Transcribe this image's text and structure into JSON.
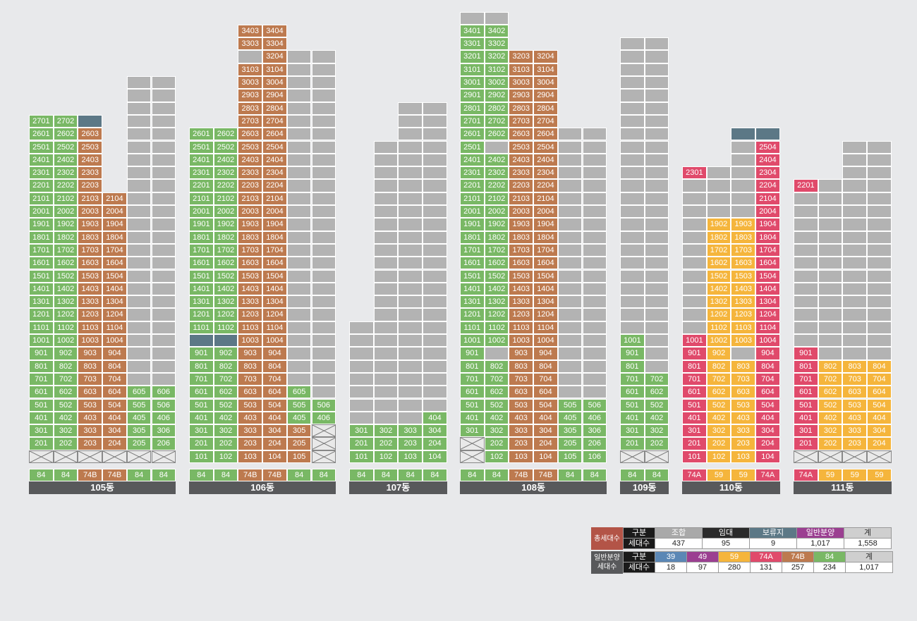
{
  "colors": {
    "green": "#79b865",
    "brown": "#bd7a4f",
    "gray": "#b3b3b3",
    "slate": "#5c7886",
    "red": "#e04a6b",
    "yellow": "#f5b53c",
    "label_bar": "#58595b",
    "purple": "#9b3f91",
    "blue": "#5b87b5"
  },
  "buildings": [
    {
      "name": "105동",
      "types": [
        {
          "t": "84",
          "c": "green"
        },
        {
          "t": "84",
          "c": "green"
        },
        {
          "t": "74B",
          "c": "brown"
        },
        {
          "t": "74B",
          "c": "brown"
        },
        {
          "t": "84",
          "c": "green"
        },
        {
          "t": "84",
          "c": "green"
        }
      ],
      "columns": [
        {
          "top": 27,
          "specs": [
            [
              27,
              27,
              "green",
              true
            ],
            [
              2,
              26,
              "green",
              true
            ],
            [
              1,
              1,
              "x",
              false
            ]
          ]
        },
        {
          "top": 27,
          "specs": [
            [
              27,
              27,
              "green",
              true
            ],
            [
              2,
              26,
              "green",
              true
            ],
            [
              1,
              1,
              "x",
              false
            ]
          ]
        },
        {
          "top": 27,
          "specs": [
            [
              27,
              27,
              "slate",
              false
            ],
            [
              2,
              26,
              "brown",
              true
            ],
            [
              1,
              1,
              "x",
              false
            ]
          ]
        },
        {
          "top": 21,
          "specs": [
            [
              2,
              21,
              "brown",
              true
            ],
            [
              1,
              1,
              "x",
              false
            ]
          ]
        },
        {
          "top": 30,
          "specs": [
            [
              7,
              30,
              "gray",
              false
            ],
            [
              2,
              6,
              "green",
              true
            ],
            [
              1,
              1,
              "x",
              false
            ]
          ]
        },
        {
          "top": 30,
          "specs": [
            [
              7,
              30,
              "gray",
              false
            ],
            [
              2,
              6,
              "green",
              true
            ],
            [
              1,
              1,
              "x",
              false
            ]
          ]
        }
      ]
    },
    {
      "name": "106동",
      "types": [
        {
          "t": "84",
          "c": "green"
        },
        {
          "t": "84",
          "c": "green"
        },
        {
          "t": "74B",
          "c": "brown"
        },
        {
          "t": "74B",
          "c": "brown"
        },
        {
          "t": "84",
          "c": "green"
        },
        {
          "t": "84",
          "c": "green"
        }
      ],
      "columns": [
        {
          "top": 26,
          "specs": [
            [
              11,
              26,
              "green",
              true
            ],
            [
              10,
              10,
              "slate",
              false
            ],
            [
              1,
              9,
              "green",
              true
            ]
          ]
        },
        {
          "top": 26,
          "specs": [
            [
              11,
              26,
              "green",
              true
            ],
            [
              10,
              10,
              "slate",
              false
            ],
            [
              1,
              9,
              "green",
              true
            ]
          ]
        },
        {
          "top": 34,
          "specs": [
            [
              33,
              34,
              "brown",
              true
            ],
            [
              32,
              32,
              "gray",
              false
            ],
            [
              1,
              31,
              "brown",
              true
            ]
          ]
        },
        {
          "top": 34,
          "specs": [
            [
              1,
              34,
              "brown",
              true
            ]
          ]
        },
        {
          "top": 32,
          "specs": [
            [
              7,
              32,
              "gray",
              false
            ],
            [
              6,
              6,
              "green",
              true
            ],
            [
              4,
              5,
              "green",
              true
            ],
            [
              2,
              3,
              "brown",
              true
            ],
            [
              1,
              1,
              "brown",
              true
            ]
          ]
        },
        {
          "top": 32,
          "specs": [
            [
              6,
              32,
              "gray",
              false
            ],
            [
              4,
              5,
              "green",
              true
            ],
            [
              1,
              3,
              "x",
              false
            ]
          ]
        }
      ]
    },
    {
      "name": "107동",
      "types": [
        {
          "t": "84",
          "c": "green"
        },
        {
          "t": "84",
          "c": "green"
        },
        {
          "t": "84",
          "c": "green"
        },
        {
          "t": "84",
          "c": "green"
        }
      ],
      "columns": [
        {
          "top": 11,
          "specs": [
            [
              4,
              11,
              "gray",
              false
            ],
            [
              1,
              3,
              "green",
              true
            ]
          ]
        },
        {
          "top": 25,
          "specs": [
            [
              4,
              25,
              "gray",
              false
            ],
            [
              1,
              3,
              "green",
              true
            ]
          ]
        },
        {
          "top": 28,
          "specs": [
            [
              4,
              28,
              "gray",
              false
            ],
            [
              1,
              3,
              "green",
              true
            ]
          ]
        },
        {
          "top": 28,
          "specs": [
            [
              5,
              28,
              "gray",
              false
            ],
            [
              1,
              4,
              "green",
              true
            ]
          ]
        }
      ]
    },
    {
      "name": "108동",
      "types": [
        {
          "t": "84",
          "c": "green"
        },
        {
          "t": "84",
          "c": "green"
        },
        {
          "t": "74B",
          "c": "brown"
        },
        {
          "t": "74B",
          "c": "brown"
        },
        {
          "t": "84",
          "c": "green"
        },
        {
          "t": "84",
          "c": "green"
        }
      ],
      "columns": [
        {
          "top": 35,
          "specs": [
            [
              35,
              35,
              "gray",
              false
            ],
            [
              27,
              34,
              "green",
              true
            ],
            [
              25,
              26,
              "green",
              true
            ],
            [
              4,
              25,
              "green",
              true
            ],
            [
              3,
              3,
              "green",
              true
            ],
            [
              2,
              2,
              "x",
              false
            ],
            [
              1,
              1,
              "x",
              false
            ]
          ]
        },
        {
          "top": 35,
          "specs": [
            [
              35,
              35,
              "gray",
              false
            ],
            [
              27,
              34,
              "green",
              true
            ],
            [
              26,
              26,
              "green",
              true
            ],
            [
              25,
              25,
              "gray",
              false
            ],
            [
              10,
              24,
              "green",
              true
            ],
            [
              9,
              9,
              "gray",
              false
            ],
            [
              2,
              8,
              "green",
              true
            ],
            [
              1,
              1,
              "green",
              true
            ]
          ]
        },
        {
          "top": 32,
          "specs": [
            [
              1,
              32,
              "brown",
              true
            ]
          ]
        },
        {
          "top": 32,
          "specs": [
            [
              1,
              32,
              "brown",
              true
            ]
          ]
        },
        {
          "top": 26,
          "specs": [
            [
              6,
              26,
              "gray",
              false
            ],
            [
              1,
              5,
              "green",
              true
            ]
          ]
        },
        {
          "top": 26,
          "specs": [
            [
              6,
              26,
              "gray",
              false
            ],
            [
              1,
              5,
              "green",
              true
            ]
          ]
        }
      ]
    },
    {
      "name": "109동",
      "types": [
        {
          "t": "84",
          "c": "green"
        },
        {
          "t": "84",
          "c": "green"
        }
      ],
      "columns": [
        {
          "top": 33,
          "specs": [
            [
              11,
              33,
              "gray",
              false
            ],
            [
              2,
              10,
              "green",
              true
            ],
            [
              1,
              1,
              "x",
              false
            ]
          ]
        },
        {
          "top": 33,
          "specs": [
            [
              8,
              33,
              "gray",
              false
            ],
            [
              2,
              7,
              "green",
              true
            ],
            [
              1,
              1,
              "x",
              false
            ]
          ]
        }
      ]
    },
    {
      "name": "110동",
      "types": [
        {
          "t": "74A",
          "c": "red"
        },
        {
          "t": "59",
          "c": "yellow"
        },
        {
          "t": "59",
          "c": "yellow"
        },
        {
          "t": "74A",
          "c": "red"
        }
      ],
      "columns": [
        {
          "top": 23,
          "specs": [
            [
              23,
              23,
              "red",
              true
            ],
            [
              11,
              22,
              "gray",
              false
            ],
            [
              1,
              10,
              "red",
              true
            ]
          ]
        },
        {
          "top": 23,
          "specs": [
            [
              20,
              23,
              "gray",
              false
            ],
            [
              1,
              19,
              "yellow",
              true
            ]
          ]
        },
        {
          "top": 26,
          "specs": [
            [
              26,
              26,
              "slate",
              false
            ],
            [
              20,
              25,
              "gray",
              false
            ],
            [
              10,
              19,
              "yellow",
              true
            ],
            [
              9,
              9,
              "gray",
              false
            ],
            [
              1,
              8,
              "yellow",
              true
            ]
          ]
        },
        {
          "top": 26,
          "specs": [
            [
              26,
              26,
              "slate",
              false
            ],
            [
              1,
              25,
              "red",
              true
            ]
          ]
        }
      ]
    },
    {
      "name": "111동",
      "types": [
        {
          "t": "74A",
          "c": "red"
        },
        {
          "t": "59",
          "c": "yellow"
        },
        {
          "t": "59",
          "c": "yellow"
        },
        {
          "t": "59",
          "c": "yellow"
        }
      ],
      "columns": [
        {
          "top": 22,
          "specs": [
            [
              22,
              22,
              "red",
              true
            ],
            [
              10,
              21,
              "gray",
              false
            ],
            [
              2,
              9,
              "red",
              true
            ],
            [
              1,
              1,
              "x",
              false
            ]
          ]
        },
        {
          "top": 22,
          "specs": [
            [
              9,
              22,
              "gray",
              false
            ],
            [
              2,
              8,
              "yellow",
              true
            ],
            [
              1,
              1,
              "x",
              false
            ]
          ]
        },
        {
          "top": 25,
          "specs": [
            [
              9,
              25,
              "gray",
              false
            ],
            [
              2,
              8,
              "yellow",
              true
            ],
            [
              1,
              1,
              "x",
              false
            ]
          ]
        },
        {
          "top": 25,
          "specs": [
            [
              9,
              25,
              "gray",
              false
            ],
            [
              2,
              8,
              "yellow",
              true
            ],
            [
              1,
              1,
              "x",
              false
            ]
          ]
        }
      ]
    }
  ],
  "legend_total": {
    "side_label": "총세대수",
    "header": [
      "구분",
      "조합",
      "임대",
      "보류지",
      "일반분양",
      "계"
    ],
    "header_colors": [
      "#1a1a1a",
      "#a9a9a9",
      "#2a2a2a",
      "#5c7886",
      "#9b3f91",
      "#cfcfcf"
    ],
    "row_label": "세대수",
    "values": [
      "437",
      "95",
      "9",
      "1,017",
      "1,558"
    ]
  },
  "legend_general": {
    "side_label": "일반분양\n세대수",
    "header": [
      "구분",
      "39",
      "49",
      "59",
      "74A",
      "74B",
      "84",
      "계"
    ],
    "header_colors": [
      "#1a1a1a",
      "#5b87b5",
      "#9b3f91",
      "#f5b53c",
      "#e04a6b",
      "#bd7a4f",
      "#79b865",
      "#cfcfcf"
    ],
    "row_label": "세대수",
    "values": [
      "18",
      "97",
      "280",
      "131",
      "257",
      "234",
      "1,017"
    ]
  }
}
